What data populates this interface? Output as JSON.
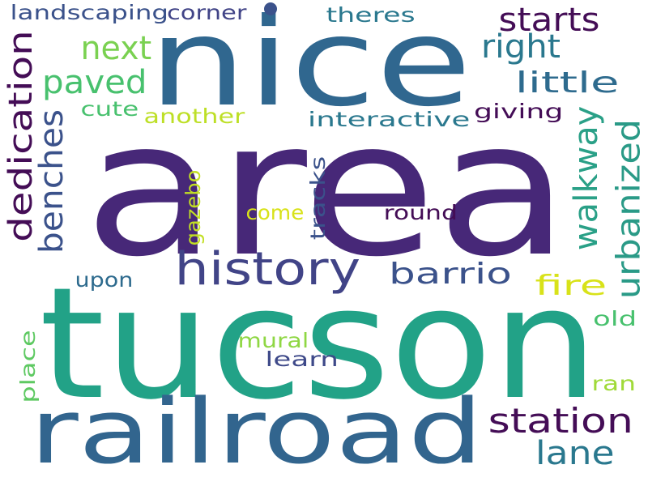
{
  "words": [
    {
      "text": "area",
      "color": "#472878",
      "orientation": "horizontal"
    },
    {
      "text": "tucson",
      "color": "#22a287",
      "orientation": "horizontal"
    },
    {
      "text": "nice",
      "color": "#30678f",
      "orientation": "horizontal"
    },
    {
      "text": "railroad",
      "color": "#32658e",
      "orientation": "horizontal"
    },
    {
      "text": "history",
      "color": "#414487",
      "orientation": "horizontal"
    },
    {
      "text": "dedication",
      "color": "#440d56",
      "orientation": "vertical"
    },
    {
      "text": "urbanized",
      "color": "#2a9a87",
      "orientation": "vertical"
    },
    {
      "text": "station",
      "color": "#440d56",
      "orientation": "horizontal"
    },
    {
      "text": "starts",
      "color": "#440d56",
      "orientation": "horizontal"
    },
    {
      "text": "benches",
      "color": "#3b528b",
      "orientation": "vertical"
    },
    {
      "text": "walkway",
      "color": "#2aa087",
      "orientation": "vertical"
    },
    {
      "text": "paved",
      "color": "#48c16e",
      "orientation": "horizontal"
    },
    {
      "text": "next",
      "color": "#7ad151",
      "orientation": "horizontal"
    },
    {
      "text": "right",
      "color": "#2a788e",
      "orientation": "horizontal"
    },
    {
      "text": "little",
      "color": "#2e6b8e",
      "orientation": "horizontal"
    },
    {
      "text": "barrio",
      "color": "#3b528b",
      "orientation": "horizontal"
    },
    {
      "text": "lane",
      "color": "#2a788e",
      "orientation": "horizontal"
    },
    {
      "text": "fire",
      "color": "#d8e219",
      "orientation": "horizontal"
    },
    {
      "text": "landscaping",
      "color": "#3b528b",
      "orientation": "horizontal"
    },
    {
      "text": "corner",
      "color": "#414487",
      "orientation": "horizontal"
    },
    {
      "text": "theres",
      "color": "#2a788e",
      "orientation": "horizontal"
    },
    {
      "text": "interactive",
      "color": "#2a788e",
      "orientation": "horizontal"
    },
    {
      "text": "giving",
      "color": "#440d56",
      "orientation": "horizontal"
    },
    {
      "text": "cute",
      "color": "#48c16e",
      "orientation": "horizontal"
    },
    {
      "text": "another",
      "color": "#bddf26",
      "orientation": "horizontal"
    },
    {
      "text": "gazebo",
      "color": "#c2df23",
      "orientation": "vertical"
    },
    {
      "text": "come",
      "color": "#d8e219",
      "orientation": "horizontal"
    },
    {
      "text": "tracks",
      "color": "#3b528b",
      "orientation": "vertical"
    },
    {
      "text": "round",
      "color": "#440d56",
      "orientation": "horizontal"
    },
    {
      "text": "upon",
      "color": "#2e6b8e",
      "orientation": "horizontal"
    },
    {
      "text": "mural",
      "color": "#8fd744",
      "orientation": "horizontal"
    },
    {
      "text": "learn",
      "color": "#3e4989",
      "orientation": "horizontal"
    },
    {
      "text": "place",
      "color": "#5ec962",
      "orientation": "vertical"
    },
    {
      "text": "old",
      "color": "#48c16e",
      "orientation": "horizontal"
    },
    {
      "text": "ran",
      "color": "#a0da39",
      "orientation": "horizontal"
    }
  ],
  "dot_color": "#3b528b"
}
